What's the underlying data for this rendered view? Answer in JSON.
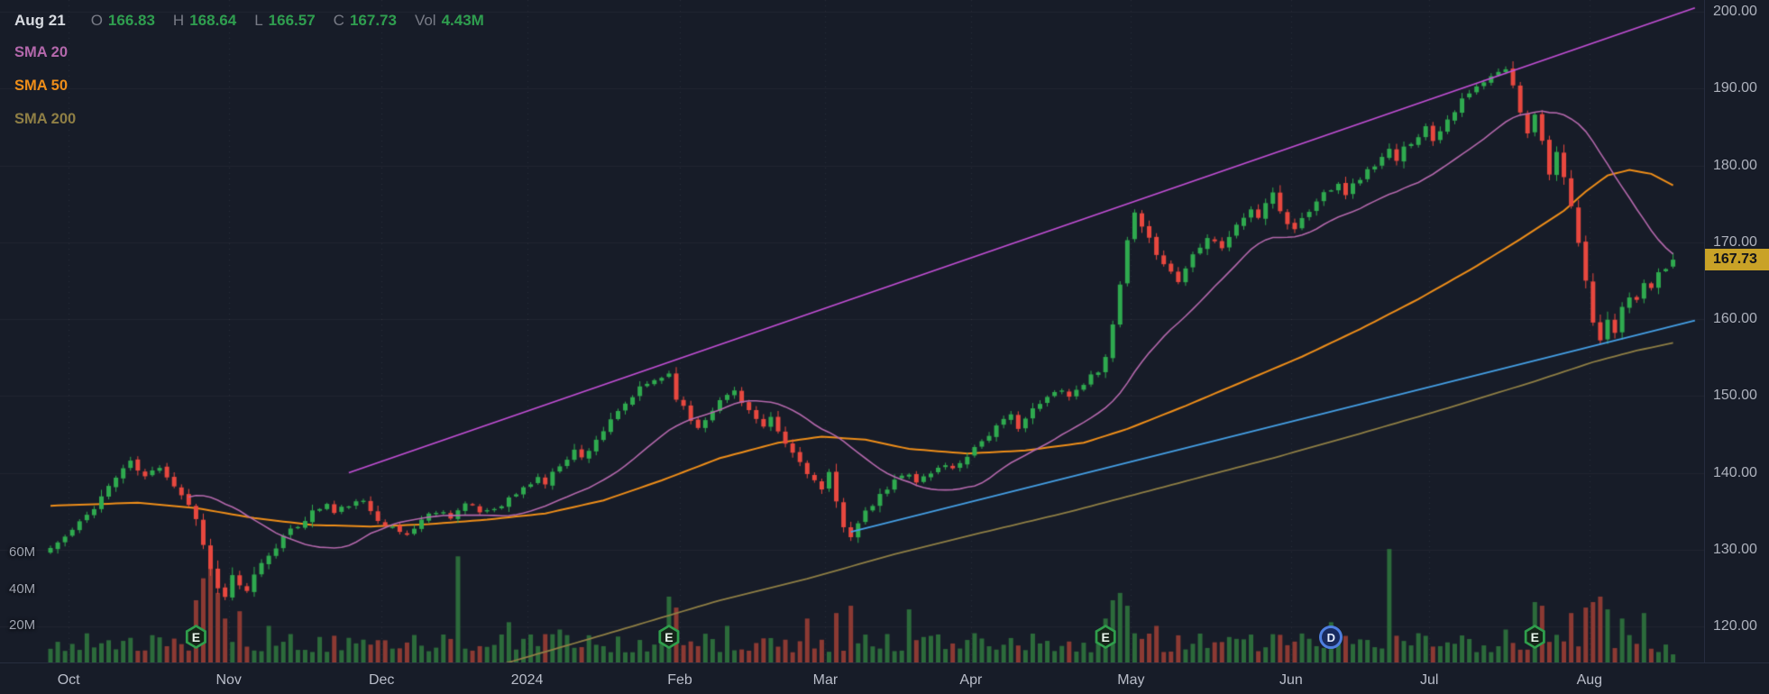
{
  "colors": {
    "background": "#171c28",
    "grid_h": "rgba(255,255,255,0.045)",
    "grid_v": "rgba(255,255,255,0.08)",
    "up": "#2faa4f",
    "down": "#e8483f",
    "vol_up": "#2c6b3b",
    "vol_down": "#8c3a33",
    "sma20": "#b468ac",
    "sma50": "#ef8e19",
    "sma200": "#8f7f45",
    "trend_upper": "#c34fd6",
    "trend_support": "#45a0e6",
    "muted_label": "#787b86",
    "value_up": "#2f9e4f",
    "axis_text": "#aeb2bd",
    "last_price_bg": "#c9a227",
    "last_price_text": "#11131a",
    "badge_e": "#2f9e4c",
    "badge_d": "#4f7fe0"
  },
  "legend": {
    "date": "Aug 21",
    "ohlc": [
      {
        "label": "O",
        "value": "166.83"
      },
      {
        "label": "H",
        "value": "168.64"
      },
      {
        "label": "L",
        "value": "166.57"
      },
      {
        "label": "C",
        "value": "167.73"
      }
    ],
    "vol_label": "Vol",
    "vol_value": "4.43M",
    "indicators": [
      {
        "id": "sma20",
        "label": "SMA 20",
        "color": "#b468ac"
      },
      {
        "id": "sma50",
        "label": "SMA 50",
        "color": "#ef8e19"
      },
      {
        "id": "sma200",
        "label": "SMA 200",
        "color": "#8f7f45"
      }
    ]
  },
  "price_axis": {
    "ticks": [
      "200.00",
      "190.00",
      "180.00",
      "170.00",
      "160.00",
      "150.00",
      "140.00",
      "130.00",
      "120.00"
    ],
    "last_price": "167.73"
  },
  "volume_axis": {
    "ticks": [
      {
        "label": "60M",
        "value": 60
      },
      {
        "label": "40M",
        "value": 40
      },
      {
        "label": "20M",
        "value": 20
      }
    ]
  },
  "time_axis": {
    "labels": [
      "Oct",
      "Nov",
      "Dec",
      "2024",
      "Feb",
      "Mar",
      "Apr",
      "May",
      "Jun",
      "Jul",
      "Aug"
    ],
    "month_start_days": [
      0,
      22,
      43,
      63,
      84,
      104,
      124,
      146,
      168,
      187,
      209
    ]
  },
  "events": [
    {
      "day": 20,
      "type": "E"
    },
    {
      "day": 85,
      "type": "E"
    },
    {
      "day": 145,
      "type": "E"
    },
    {
      "day": 176,
      "type": "D"
    },
    {
      "day": 204,
      "type": "E"
    }
  ],
  "chart_data": {
    "type": "candlestick+volume",
    "title": "",
    "x_span": "Daily candles, day 0 = early Oct 2023, day 223 = Aug 21 2024",
    "num_days": 224,
    "price_axis_ticks": [
      200,
      190,
      180,
      170,
      160,
      150,
      140,
      130,
      120
    ],
    "volume_axis_ticks_m": [
      60,
      40,
      20
    ],
    "last_candle": {
      "open": 166.83,
      "high": 168.64,
      "low": 166.57,
      "close": 167.73,
      "volume_m": 4.43
    },
    "close_anchors": [
      [
        0,
        130.2
      ],
      [
        2,
        131.6
      ],
      [
        4,
        133.4
      ],
      [
        6,
        135.6
      ],
      [
        8,
        138.2
      ],
      [
        10,
        140.6
      ],
      [
        11,
        141.3
      ],
      [
        13,
        139.4
      ],
      [
        15,
        140.9
      ],
      [
        17,
        138.4
      ],
      [
        19,
        135.9
      ],
      [
        20,
        133.9
      ],
      [
        21,
        130.9
      ],
      [
        22,
        127.4
      ],
      [
        23,
        124.9
      ],
      [
        24,
        123.9
      ],
      [
        25,
        126.4
      ],
      [
        26,
        125.1
      ],
      [
        27,
        124.4
      ],
      [
        28,
        126.9
      ],
      [
        30,
        129.4
      ],
      [
        32,
        131.6
      ],
      [
        34,
        133.1
      ],
      [
        36,
        134.9
      ],
      [
        38,
        135.9
      ],
      [
        39,
        134.7
      ],
      [
        41,
        135.9
      ],
      [
        43,
        136.1
      ],
      [
        45,
        134.1
      ],
      [
        47,
        132.7
      ],
      [
        49,
        131.9
      ],
      [
        51,
        133.9
      ],
      [
        53,
        135.1
      ],
      [
        55,
        134.4
      ],
      [
        57,
        135.9
      ],
      [
        59,
        134.9
      ],
      [
        61,
        135.4
      ],
      [
        63,
        136.6
      ],
      [
        65,
        137.9
      ],
      [
        67,
        139.4
      ],
      [
        68,
        138.6
      ],
      [
        70,
        141.1
      ],
      [
        72,
        142.9
      ],
      [
        73,
        141.9
      ],
      [
        75,
        144.4
      ],
      [
        77,
        146.6
      ],
      [
        79,
        148.9
      ],
      [
        81,
        150.9
      ],
      [
        83,
        152.1
      ],
      [
        85,
        152.9
      ],
      [
        86,
        149.9
      ],
      [
        88,
        146.9
      ],
      [
        89,
        145.9
      ],
      [
        91,
        148.4
      ],
      [
        93,
        150.1
      ],
      [
        94,
        150.7
      ],
      [
        96,
        148.1
      ],
      [
        98,
        145.7
      ],
      [
        99,
        146.9
      ],
      [
        101,
        143.7
      ],
      [
        103,
        141.4
      ],
      [
        105,
        138.9
      ],
      [
        106,
        137.7
      ],
      [
        107,
        139.7
      ],
      [
        108,
        136.1
      ],
      [
        109,
        133.2
      ],
      [
        110,
        131.9
      ],
      [
        112,
        134.7
      ],
      [
        114,
        136.9
      ],
      [
        116,
        138.9
      ],
      [
        118,
        140.1
      ],
      [
        119,
        138.9
      ],
      [
        121,
        139.9
      ],
      [
        123,
        141.2
      ],
      [
        124,
        140.4
      ],
      [
        126,
        142.4
      ],
      [
        128,
        144.2
      ],
      [
        130,
        145.9
      ],
      [
        132,
        147.4
      ],
      [
        133,
        146.1
      ],
      [
        135,
        148.1
      ],
      [
        137,
        149.7
      ],
      [
        139,
        151.1
      ],
      [
        140,
        149.9
      ],
      [
        142,
        151.7
      ],
      [
        144,
        153.4
      ],
      [
        145,
        155.4
      ],
      [
        146,
        158.9
      ],
      [
        147,
        164.4
      ],
      [
        148,
        170.1
      ],
      [
        149,
        173.6
      ],
      [
        150,
        171.7
      ],
      [
        152,
        168.7
      ],
      [
        154,
        166.1
      ],
      [
        155,
        164.9
      ],
      [
        157,
        168.4
      ],
      [
        159,
        170.9
      ],
      [
        161,
        169.4
      ],
      [
        163,
        172.1
      ],
      [
        165,
        174.4
      ],
      [
        166,
        173.1
      ],
      [
        167,
        175.2
      ],
      [
        168,
        176.1
      ],
      [
        169,
        174.2
      ],
      [
        170,
        172.4
      ],
      [
        171,
        171.9
      ],
      [
        173,
        174.1
      ],
      [
        175,
        176.4
      ],
      [
        177,
        177.9
      ],
      [
        178,
        176.4
      ],
      [
        180,
        178.4
      ],
      [
        182,
        180.1
      ],
      [
        184,
        181.9
      ],
      [
        185,
        180.4
      ],
      [
        186,
        182.2
      ],
      [
        187,
        183.1
      ],
      [
        189,
        184.9
      ],
      [
        190,
        183.4
      ],
      [
        192,
        186.1
      ],
      [
        194,
        188.4
      ],
      [
        196,
        190.1
      ],
      [
        198,
        191.4
      ],
      [
        200,
        192.6
      ],
      [
        201,
        190.2
      ],
      [
        202,
        187.1
      ],
      [
        203,
        184.4
      ],
      [
        204,
        186.9
      ],
      [
        205,
        183.1
      ],
      [
        206,
        179.2
      ],
      [
        207,
        181.7
      ],
      [
        208,
        178.1
      ],
      [
        209,
        174.4
      ],
      [
        210,
        169.9
      ],
      [
        211,
        164.7
      ],
      [
        212,
        159.9
      ],
      [
        213,
        157.2
      ],
      [
        214,
        159.7
      ],
      [
        215,
        158.4
      ],
      [
        216,
        161.2
      ],
      [
        217,
        163.1
      ],
      [
        218,
        162.2
      ],
      [
        219,
        164.7
      ],
      [
        220,
        163.7
      ],
      [
        221,
        165.7
      ],
      [
        222,
        166.6
      ],
      [
        223,
        167.73
      ]
    ],
    "volume_spikes_m": [
      [
        20,
        34
      ],
      [
        21,
        46
      ],
      [
        22,
        61
      ],
      [
        23,
        38
      ],
      [
        24,
        24
      ],
      [
        26,
        28
      ],
      [
        30,
        20
      ],
      [
        56,
        58
      ],
      [
        63,
        22
      ],
      [
        70,
        18
      ],
      [
        85,
        36
      ],
      [
        86,
        30
      ],
      [
        93,
        20
      ],
      [
        104,
        24
      ],
      [
        108,
        27
      ],
      [
        110,
        31
      ],
      [
        118,
        29
      ],
      [
        145,
        24
      ],
      [
        146,
        34
      ],
      [
        147,
        38
      ],
      [
        148,
        31
      ],
      [
        152,
        20
      ],
      [
        176,
        22
      ],
      [
        184,
        62
      ],
      [
        200,
        18
      ],
      [
        204,
        33
      ],
      [
        205,
        31
      ],
      [
        209,
        27
      ],
      [
        211,
        30
      ],
      [
        212,
        33
      ],
      [
        213,
        36
      ],
      [
        214,
        29
      ],
      [
        216,
        24
      ],
      [
        219,
        27
      ],
      [
        223,
        4.43
      ]
    ],
    "sma50_anchors": [
      [
        0,
        135.7
      ],
      [
        12,
        136.1
      ],
      [
        20,
        135.4
      ],
      [
        28,
        134.1
      ],
      [
        36,
        133.2
      ],
      [
        44,
        133.0
      ],
      [
        52,
        133.3
      ],
      [
        60,
        133.9
      ],
      [
        68,
        134.7
      ],
      [
        76,
        136.4
      ],
      [
        84,
        139.0
      ],
      [
        92,
        141.9
      ],
      [
        100,
        143.9
      ],
      [
        106,
        144.7
      ],
      [
        112,
        144.3
      ],
      [
        118,
        143.1
      ],
      [
        126,
        142.5
      ],
      [
        134,
        142.9
      ],
      [
        142,
        143.9
      ],
      [
        148,
        145.7
      ],
      [
        156,
        148.7
      ],
      [
        164,
        151.9
      ],
      [
        172,
        155.1
      ],
      [
        180,
        158.7
      ],
      [
        188,
        162.6
      ],
      [
        196,
        166.9
      ],
      [
        202,
        170.4
      ],
      [
        208,
        174.1
      ],
      [
        211,
        176.6
      ],
      [
        214,
        178.7
      ],
      [
        217,
        179.4
      ],
      [
        220,
        178.9
      ],
      [
        223,
        177.4
      ]
    ],
    "sma200_anchors": [
      [
        44,
        110.5
      ],
      [
        60,
        114.5
      ],
      [
        76,
        118.9
      ],
      [
        92,
        123.4
      ],
      [
        104,
        126.2
      ],
      [
        116,
        129.4
      ],
      [
        128,
        132.2
      ],
      [
        140,
        134.9
      ],
      [
        146,
        136.4
      ],
      [
        156,
        138.9
      ],
      [
        168,
        141.9
      ],
      [
        180,
        145.1
      ],
      [
        192,
        148.4
      ],
      [
        204,
        151.9
      ],
      [
        212,
        154.4
      ],
      [
        218,
        155.9
      ],
      [
        223,
        156.9
      ]
    ],
    "sma20_note": "computed as 20-day moving average of closes",
    "trendlines": [
      {
        "name": "upper-channel-line",
        "color": "#c34fd6",
        "points": [
          [
            41,
            140.0
          ],
          [
            226,
            200.5
          ]
        ]
      },
      {
        "name": "support-line",
        "color": "#45a0e6",
        "points": [
          [
            110,
            132.3
          ],
          [
            226,
            159.8
          ]
        ]
      }
    ],
    "event_markers": [
      {
        "day": 20,
        "type": "earnings"
      },
      {
        "day": 85,
        "type": "earnings"
      },
      {
        "day": 145,
        "type": "earnings"
      },
      {
        "day": 176,
        "type": "dividend"
      },
      {
        "day": 204,
        "type": "earnings"
      }
    ]
  }
}
